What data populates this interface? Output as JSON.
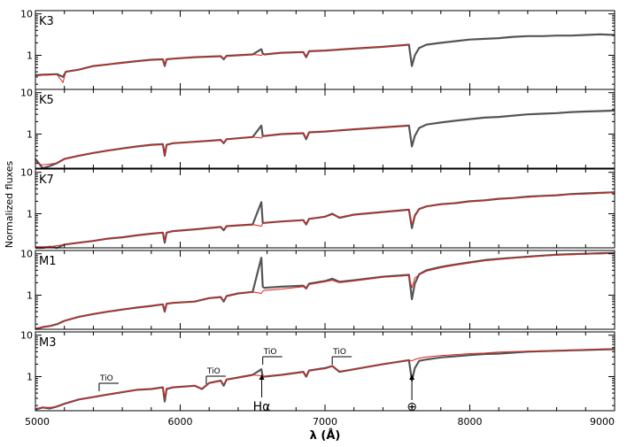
{
  "chart_data": {
    "type": "line",
    "ylabel": "Normalized fluxes",
    "xlabel": "λ (Å)",
    "xlim": [
      5000,
      9000
    ],
    "x_ticks": [
      5000,
      6000,
      7000,
      8000,
      9000
    ],
    "y_scale": "log",
    "ylim": [
      0.15,
      12
    ],
    "y_ticks": [
      1,
      10
    ],
    "grid": false,
    "colors": {
      "observed": "#555555",
      "model": "#e0221f"
    },
    "panels": [
      {
        "label": "K3",
        "x": [
          5000,
          5050,
          5150,
          5190,
          5210,
          5300,
          5400,
          5500,
          5600,
          5700,
          5800,
          5880,
          5893,
          5906,
          5950,
          6100,
          6280,
          6300,
          6320,
          6500,
          6560,
          6570,
          6580,
          6700,
          6850,
          6870,
          6890,
          7000,
          7200,
          7400,
          7580,
          7600,
          7620,
          7650,
          7700,
          7800,
          7900,
          8000,
          8100,
          8200,
          8300,
          8400,
          8500,
          8600,
          8700,
          8800,
          8900,
          9000
        ],
        "observed": [
          0.33,
          0.34,
          0.35,
          0.3,
          0.4,
          0.45,
          0.55,
          0.6,
          0.66,
          0.72,
          0.78,
          0.8,
          0.55,
          0.8,
          0.83,
          0.9,
          0.95,
          0.8,
          0.97,
          1.05,
          1.4,
          1.1,
          1.05,
          1.15,
          1.2,
          0.9,
          1.25,
          1.3,
          1.45,
          1.6,
          1.8,
          0.55,
          1.0,
          1.5,
          1.8,
          2.0,
          2.2,
          2.4,
          2.5,
          2.6,
          2.8,
          2.9,
          2.9,
          3.0,
          3.0,
          3.1,
          3.2,
          3.1
        ],
        "model": [
          0.32,
          0.33,
          0.34,
          0.22,
          0.4,
          0.45,
          0.55,
          0.6,
          0.66,
          0.72,
          0.77,
          0.8,
          0.56,
          0.8,
          0.83,
          0.9,
          0.95,
          0.82,
          0.96,
          1.05,
          1.0,
          1.05,
          1.05,
          1.15,
          1.2,
          0.95,
          1.25,
          1.3,
          1.45,
          1.6,
          1.8
        ]
      },
      {
        "label": "K5",
        "x": [
          5000,
          5050,
          5100,
          5150,
          5200,
          5300,
          5400,
          5500,
          5600,
          5700,
          5800,
          5880,
          5893,
          5906,
          5950,
          6100,
          6280,
          6300,
          6320,
          6500,
          6560,
          6570,
          6580,
          6700,
          6850,
          6870,
          6890,
          7000,
          7200,
          7400,
          7580,
          7600,
          7620,
          7650,
          7700,
          7800,
          7900,
          8000,
          8100,
          8200,
          8300,
          8400,
          8500,
          8600,
          8700,
          8800,
          8900,
          9000
        ],
        "observed": [
          0.25,
          0.15,
          0.17,
          0.2,
          0.25,
          0.3,
          0.35,
          0.4,
          0.45,
          0.5,
          0.55,
          0.57,
          0.3,
          0.55,
          0.6,
          0.65,
          0.72,
          0.6,
          0.75,
          0.85,
          1.6,
          0.9,
          0.9,
          1.0,
          1.05,
          0.75,
          1.1,
          1.15,
          1.3,
          1.45,
          1.6,
          0.5,
          0.9,
          1.4,
          1.7,
          1.9,
          2.1,
          2.3,
          2.5,
          2.6,
          2.8,
          3.0,
          3.1,
          3.2,
          3.4,
          3.5,
          3.6,
          3.7
        ],
        "model": [
          0.2,
          0.18,
          0.19,
          0.2,
          0.25,
          0.3,
          0.35,
          0.4,
          0.45,
          0.5,
          0.55,
          0.57,
          0.32,
          0.55,
          0.6,
          0.65,
          0.72,
          0.62,
          0.74,
          0.85,
          0.8,
          0.88,
          0.9,
          1.0,
          1.05,
          0.8,
          1.1,
          1.15,
          1.3,
          1.45,
          1.6
        ]
      },
      {
        "label": "K7",
        "x": [
          5000,
          5050,
          5100,
          5150,
          5200,
          5300,
          5400,
          5500,
          5600,
          5700,
          5800,
          5880,
          5893,
          5906,
          5950,
          6100,
          6280,
          6300,
          6320,
          6500,
          6560,
          6570,
          6580,
          6700,
          6850,
          6870,
          6890,
          7000,
          7050,
          7100,
          7200,
          7400,
          7580,
          7600,
          7620,
          7650,
          7700,
          7800,
          7900,
          8000,
          8100,
          8200,
          8300,
          8400,
          8500,
          8600,
          8700,
          8800,
          8900,
          9000
        ],
        "observed": [
          0.15,
          0.13,
          0.16,
          0.14,
          0.18,
          0.2,
          0.22,
          0.25,
          0.27,
          0.3,
          0.33,
          0.35,
          0.2,
          0.35,
          0.38,
          0.42,
          0.48,
          0.4,
          0.5,
          0.55,
          1.9,
          0.6,
          0.6,
          0.65,
          0.7,
          0.55,
          0.75,
          0.85,
          1.0,
          0.8,
          0.95,
          1.1,
          1.25,
          0.45,
          0.9,
          1.3,
          1.5,
          1.7,
          1.8,
          2.0,
          2.1,
          2.3,
          2.4,
          2.6,
          2.7,
          2.8,
          3.0,
          3.1,
          3.2,
          3.3
        ],
        "model": [
          0.16,
          0.16,
          0.16,
          0.17,
          0.18,
          0.2,
          0.22,
          0.25,
          0.27,
          0.3,
          0.33,
          0.35,
          0.22,
          0.35,
          0.38,
          0.42,
          0.48,
          0.42,
          0.5,
          0.55,
          0.5,
          0.58,
          0.6,
          0.65,
          0.7,
          0.58,
          0.75,
          0.85,
          0.95,
          0.82,
          0.95,
          1.1,
          1.25,
          0.55,
          0.95,
          1.3,
          1.5,
          1.65,
          1.8,
          1.95,
          2.1,
          2.25,
          2.4,
          2.5,
          2.65,
          2.8,
          2.9,
          3.0,
          3.1,
          3.2
        ]
      },
      {
        "label": "M1",
        "x": [
          5000,
          5050,
          5100,
          5150,
          5200,
          5300,
          5400,
          5500,
          5600,
          5700,
          5800,
          5880,
          5893,
          5906,
          5950,
          6100,
          6200,
          6280,
          6300,
          6320,
          6400,
          6500,
          6560,
          6570,
          6580,
          6700,
          6850,
          6870,
          6890,
          7000,
          7050,
          7100,
          7200,
          7400,
          7580,
          7600,
          7620,
          7650,
          7700,
          7800,
          7900,
          8000,
          8100,
          8200,
          8300,
          8400,
          8500,
          8600,
          8700,
          8800,
          8900,
          9000
        ],
        "observed": [
          0.15,
          0.17,
          0.18,
          0.2,
          0.24,
          0.3,
          0.35,
          0.4,
          0.45,
          0.5,
          0.55,
          0.6,
          0.4,
          0.62,
          0.65,
          0.7,
          0.85,
          0.9,
          0.7,
          0.95,
          1.1,
          1.2,
          8.0,
          1.6,
          1.5,
          1.6,
          1.7,
          1.45,
          1.9,
          2.2,
          2.5,
          2.1,
          2.3,
          2.8,
          3.1,
          0.8,
          1.9,
          3.2,
          4.0,
          4.8,
          5.5,
          6.2,
          7.0,
          7.5,
          8.0,
          8.5,
          9.0,
          9.5,
          9.8,
          10.0,
          10.3,
          10.5
        ],
        "model": [
          0.16,
          0.17,
          0.18,
          0.2,
          0.24,
          0.3,
          0.35,
          0.4,
          0.45,
          0.5,
          0.55,
          0.6,
          0.42,
          0.62,
          0.65,
          0.7,
          0.85,
          0.9,
          0.75,
          0.95,
          1.1,
          1.2,
          1.1,
          1.25,
          1.3,
          1.4,
          1.6,
          1.4,
          1.8,
          2.1,
          2.3,
          2.0,
          2.2,
          2.7,
          3.0,
          1.5,
          2.6,
          3.1,
          3.8,
          4.6,
          5.3,
          6.0,
          6.7,
          7.3,
          7.8,
          8.3,
          8.8,
          9.2,
          9.5,
          9.8,
          10.0,
          10.2
        ]
      },
      {
        "label": "M3",
        "x": [
          5000,
          5050,
          5100,
          5150,
          5200,
          5300,
          5400,
          5500,
          5600,
          5700,
          5800,
          5880,
          5893,
          5906,
          5950,
          6100,
          6150,
          6200,
          6280,
          6300,
          6320,
          6400,
          6500,
          6560,
          6570,
          6580,
          6700,
          6850,
          6870,
          6890,
          7000,
          7050,
          7100,
          7200,
          7400,
          7580,
          7600,
          7620,
          7650,
          7700,
          7800,
          7900,
          8000,
          8100,
          8200,
          8300,
          8400,
          8500,
          8600,
          8700,
          8800,
          8900,
          9000
        ],
        "observed": [
          0.16,
          0.18,
          0.17,
          0.19,
          0.22,
          0.28,
          0.32,
          0.37,
          0.42,
          0.48,
          0.5,
          0.55,
          0.25,
          0.5,
          0.55,
          0.6,
          0.5,
          0.7,
          0.8,
          0.6,
          0.85,
          0.95,
          1.1,
          1.5,
          1.0,
          1.0,
          1.1,
          1.3,
          1.0,
          1.4,
          1.6,
          1.8,
          1.3,
          1.5,
          2.0,
          2.5,
          0.8,
          1.6,
          2.4,
          2.6,
          2.9,
          3.1,
          3.3,
          3.5,
          3.6,
          3.8,
          4.0,
          4.1,
          4.2,
          4.3,
          4.4,
          4.5,
          4.6
        ],
        "model": [
          0.17,
          0.18,
          0.18,
          0.19,
          0.22,
          0.28,
          0.32,
          0.37,
          0.42,
          0.48,
          0.5,
          0.55,
          0.3,
          0.52,
          0.55,
          0.6,
          0.52,
          0.7,
          0.8,
          0.65,
          0.85,
          0.95,
          1.1,
          1.05,
          1.0,
          1.0,
          1.1,
          1.3,
          1.05,
          1.4,
          1.55,
          1.75,
          1.35,
          1.5,
          2.0,
          2.5,
          2.4,
          2.6,
          2.8,
          3.0,
          3.2,
          3.4,
          3.6,
          3.7,
          3.9,
          4.0,
          4.1,
          4.2,
          4.3,
          4.4,
          4.5,
          4.6,
          4.7
        ]
      }
    ],
    "annotations": {
      "tio": [
        {
          "label": "TiO",
          "x": 5440
        },
        {
          "label": "TiO",
          "x": 6180
        },
        {
          "label": "TiO",
          "x": 6570
        },
        {
          "label": "TiO",
          "x": 7050
        }
      ],
      "halpha": {
        "label": "Hα",
        "x": 6563
      },
      "telluric": {
        "label": "⊕",
        "x": 7600
      }
    }
  }
}
